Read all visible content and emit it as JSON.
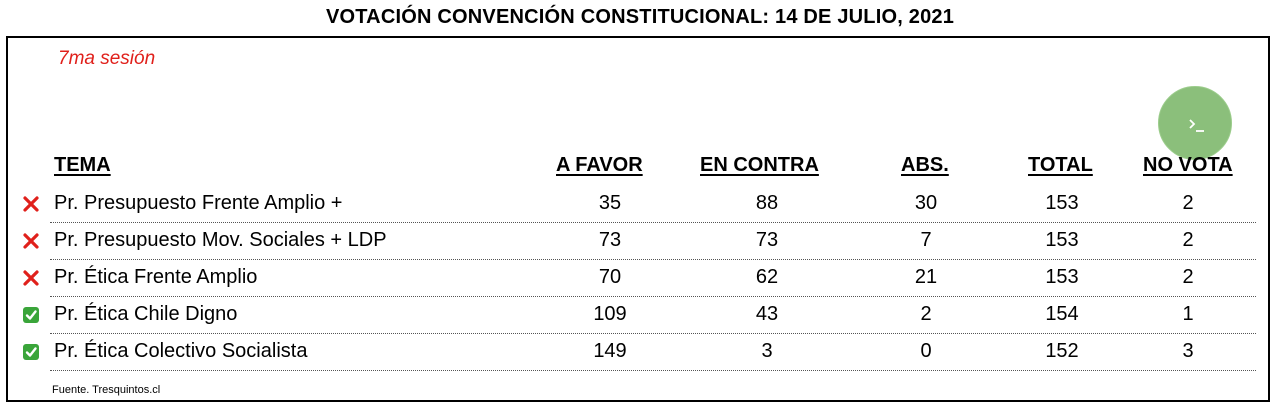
{
  "title": "VOTACIÓN CONVENCIÓN CONSTITUCIONAL: 14 DE JULIO, 2021",
  "session_label": "7ma sesión",
  "colors": {
    "session": "#e0201b",
    "reject": "#e0201b",
    "approve": "#3aa53a",
    "terminal_button": "#8bbf7b"
  },
  "terminal_button": {
    "icon": "terminal-prompt-icon",
    "glyph": "›_"
  },
  "headers": {
    "tema": "TEMA",
    "a_favor": "A FAVOR",
    "en_contra": "EN CONTRA",
    "abs": "ABS.",
    "total": "TOTAL",
    "no_vota": "NO VOTA"
  },
  "rows": [
    {
      "status": "rejected",
      "status_icon": "cross-icon",
      "tema": "Pr. Presupuesto Frente Amplio +",
      "a_favor": "35",
      "en_contra": "88",
      "abs": "30",
      "total": "153",
      "no_vota": "2"
    },
    {
      "status": "rejected",
      "status_icon": "cross-icon",
      "tema": "Pr. Presupuesto Mov. Sociales + LDP",
      "a_favor": "73",
      "en_contra": "73",
      "abs": "7",
      "total": "153",
      "no_vota": "2"
    },
    {
      "status": "rejected",
      "status_icon": "cross-icon",
      "tema": "Pr. Ética Frente Amplio",
      "a_favor": "70",
      "en_contra": "62",
      "abs": "21",
      "total": "153",
      "no_vota": "2"
    },
    {
      "status": "approved",
      "status_icon": "check-box-icon",
      "tema": "Pr. Ética Chile Digno",
      "a_favor": "109",
      "en_contra": "43",
      "abs": "2",
      "total": "154",
      "no_vota": "1"
    },
    {
      "status": "approved",
      "status_icon": "check-box-icon",
      "tema": "Pr. Ética Colectivo Socialista",
      "a_favor": "149",
      "en_contra": "3",
      "abs": "0",
      "total": "152",
      "no_vota": "3"
    }
  ],
  "source": "Fuente. Tresquintos.cl"
}
